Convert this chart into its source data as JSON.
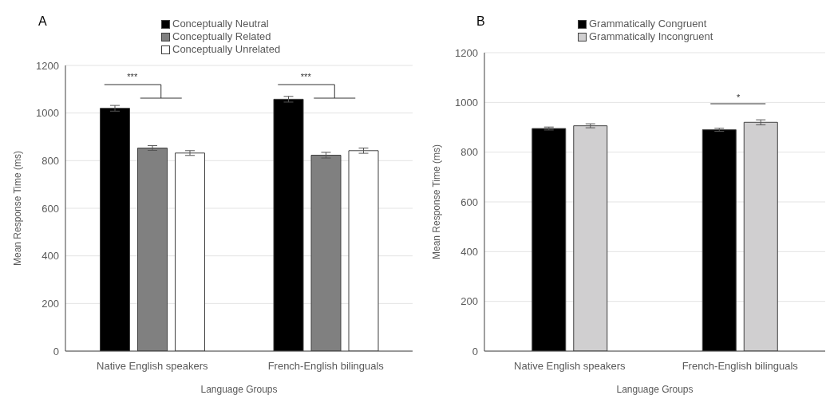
{
  "chart_data": [
    {
      "type": "bar",
      "title": "A",
      "xlabel": "Language Groups",
      "ylabel": "Mean Response Time (ms)",
      "categories": [
        "Native English speakers",
        "French-English bilinguals"
      ],
      "series": [
        {
          "name": "Conceptually Neutral",
          "color": "#000000",
          "values": [
            1020,
            1058
          ],
          "errors": [
            12,
            12
          ]
        },
        {
          "name": "Conceptually Related",
          "color": "#808080",
          "values": [
            853,
            823
          ],
          "errors": [
            10,
            12
          ]
        },
        {
          "name": "Conceptually Unrelated",
          "color": "#ffffff",
          "values": [
            832,
            842
          ],
          "errors": [
            10,
            11
          ]
        }
      ],
      "ylim": [
        0,
        1200
      ],
      "yticks": [
        0,
        200,
        400,
        600,
        800,
        1000,
        1200
      ],
      "grid": "y",
      "legend": "top",
      "annotations": [
        "***",
        "***"
      ]
    },
    {
      "type": "bar",
      "title": "B",
      "xlabel": "Language Groups",
      "ylabel": "Mean Response Time (ms)",
      "categories": [
        "Native English speakers",
        "French-English bilinguals"
      ],
      "series": [
        {
          "name": "Grammatically Congruent",
          "color": "#000000",
          "values": [
            895,
            890
          ],
          "errors": [
            6,
            6
          ]
        },
        {
          "name": "Grammatically Incongruent",
          "color": "#d0cfd0",
          "values": [
            906,
            920
          ],
          "errors": [
            8,
            10
          ]
        }
      ],
      "ylim": [
        0,
        1200
      ],
      "yticks": [
        0,
        200,
        400,
        600,
        800,
        1000,
        1200
      ],
      "grid": "y",
      "legend": "top",
      "annotations": [
        "*"
      ]
    }
  ]
}
